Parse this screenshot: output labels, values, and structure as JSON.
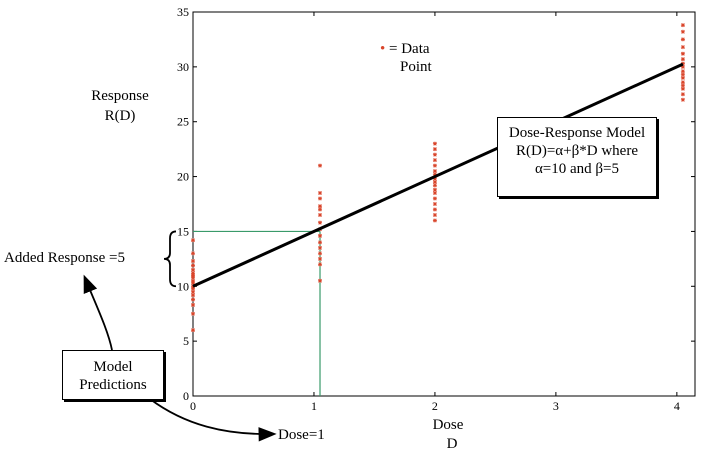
{
  "chart_data": {
    "type": "scatter",
    "xlabel": "Dose",
    "xlabel_sub": "D",
    "ylabel": "Response",
    "ylabel_sub": "R(D)",
    "xlim": [
      0,
      4.15
    ],
    "ylim": [
      0,
      35
    ],
    "xticks": [
      0,
      1,
      2,
      3,
      4
    ],
    "yticks": [
      0,
      5,
      10,
      15,
      20,
      25,
      30,
      35
    ],
    "grid": false,
    "legend": {
      "symbol": "•",
      "text_line1": "= Data",
      "text_line2": "Point",
      "position": "top-center"
    },
    "model_line": {
      "intercept": 10,
      "slope": 5,
      "x": [
        0,
        4.05
      ]
    },
    "series": [
      {
        "dose": 0,
        "values": [
          6.0,
          7.5,
          8.3,
          8.8,
          9.2,
          9.5,
          9.8,
          10.0,
          10.3,
          10.5,
          10.8,
          11.0,
          11.2,
          11.5,
          11.9,
          12.3,
          13.0,
          14.2
        ]
      },
      {
        "dose": 1.05,
        "values": [
          10.5,
          12.0,
          12.5,
          13.0,
          13.5,
          14.0,
          14.6,
          15.2,
          15.8,
          16.5,
          17.0,
          17.3,
          18.0,
          18.5,
          21.0
        ]
      },
      {
        "dose": 2,
        "values": [
          16.0,
          16.5,
          17.0,
          17.5,
          18.0,
          18.5,
          18.8,
          19.2,
          19.5,
          19.8,
          20.2,
          20.5,
          21.0,
          21.5,
          22.0,
          22.5,
          23.0
        ]
      },
      {
        "dose": 4.05,
        "values": [
          27.0,
          27.5,
          28.0,
          28.3,
          28.6,
          29.0,
          29.3,
          29.6,
          30.0,
          30.3,
          30.7,
          31.2,
          31.8,
          32.5,
          33.2,
          33.8
        ]
      }
    ],
    "reference_lines": {
      "dose": 1.05,
      "response": 15
    },
    "colors": {
      "points": "#d9452b",
      "reference": "#3a9a6a",
      "line": "#000000"
    }
  },
  "annotations": {
    "model_box": {
      "line1": "Dose-Response Model",
      "line2": "R(D)=α+β*D where",
      "line3": "α=10 and β=5"
    },
    "added_response": "Added Response =5",
    "predictions_box": {
      "line1": "Model",
      "line2": "Predictions"
    },
    "dose_label": "Dose=1"
  }
}
